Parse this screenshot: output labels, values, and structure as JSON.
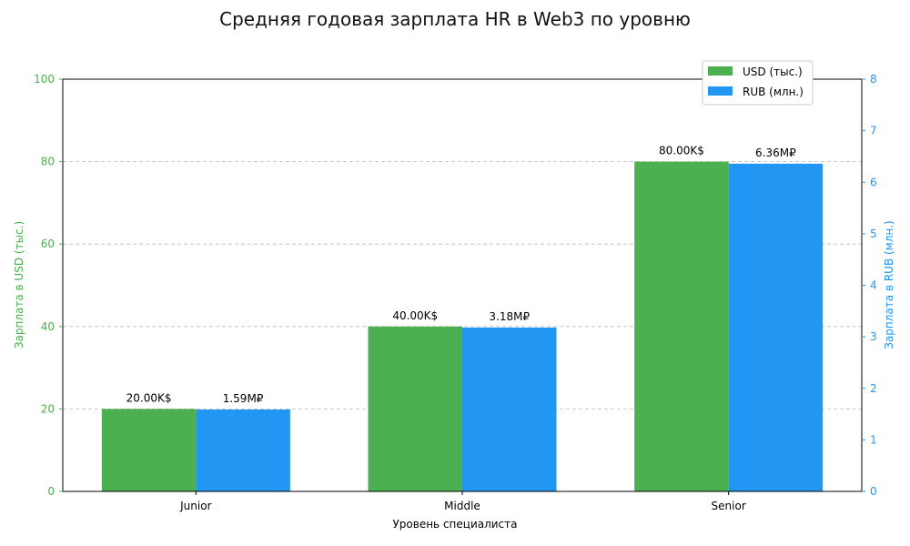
{
  "chart_data": {
    "type": "bar",
    "title": "Средняя годовая зарплата HR в Web3 по уровню",
    "xlabel": "Уровень специалиста",
    "ylabel_left": "Зарплата в USD (тыс.)",
    "ylabel_right": "Зарплата в RUB (млн.)",
    "categories": [
      "Junior",
      "Middle",
      "Senior"
    ],
    "ylim_left": [
      0,
      100
    ],
    "yticks_left": [
      0,
      20,
      40,
      60,
      80,
      100
    ],
    "ylim_right": [
      0,
      8
    ],
    "yticks_right": [
      0,
      1,
      2,
      3,
      4,
      5,
      6,
      7,
      8
    ],
    "grid": true,
    "legend_position": "top-right",
    "series": [
      {
        "name": "USD (тыс.)",
        "axis": "left",
        "color": "#4caf50",
        "values": [
          20,
          40,
          80
        ],
        "labels": [
          "20.00K$",
          "40.00K$",
          "80.00K$"
        ]
      },
      {
        "name": "RUB (млн.)",
        "axis": "right",
        "color": "#2196f3",
        "values": [
          1.59,
          3.18,
          6.36
        ],
        "labels": [
          "1.59M₽",
          "3.18M₽",
          "6.36M₽"
        ]
      }
    ],
    "left_axis_color": "#4caf50",
    "right_axis_color": "#2196f3"
  }
}
